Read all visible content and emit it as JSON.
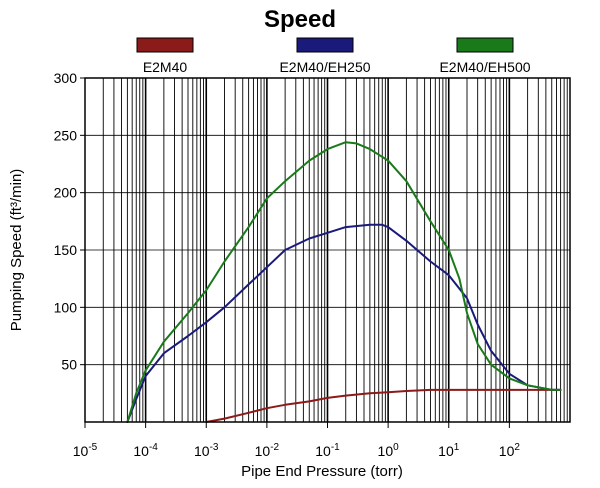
{
  "chart_data": {
    "type": "line",
    "title": "Speed",
    "xlabel": "Pipe End Pressure (torr)",
    "ylabel": "Pumping Speed (ft³/min)",
    "x_scale": "log",
    "xlim": [
      1e-05,
      1000
    ],
    "ylim": [
      0,
      300
    ],
    "grid": true,
    "legend_position": "top",
    "x_tick_labels": [
      {
        "base": "10",
        "exp": "-5",
        "value": 1e-05
      },
      {
        "base": "10",
        "exp": "-4",
        "value": 0.0001
      },
      {
        "base": "10",
        "exp": "-3",
        "value": 0.001
      },
      {
        "base": "10",
        "exp": "-2",
        "value": 0.01
      },
      {
        "base": "10",
        "exp": "-1",
        "value": 0.1
      },
      {
        "base": "10",
        "exp": "0",
        "value": 1
      },
      {
        "base": "10",
        "exp": "1",
        "value": 10
      },
      {
        "base": "10",
        "exp": "2",
        "value": 100
      }
    ],
    "y_tick_labels": [
      "50",
      "100",
      "150",
      "200",
      "250",
      "300"
    ],
    "y_ticks": [
      50,
      100,
      150,
      200,
      250,
      300
    ],
    "series": [
      {
        "name": "E2M40",
        "color": "#8b1a1a",
        "points": [
          [
            0.001,
            0
          ],
          [
            0.002,
            3
          ],
          [
            0.005,
            8
          ],
          [
            0.01,
            12
          ],
          [
            0.02,
            15
          ],
          [
            0.05,
            18
          ],
          [
            0.1,
            21
          ],
          [
            0.2,
            23
          ],
          [
            0.5,
            25
          ],
          [
            1,
            26
          ],
          [
            2,
            27
          ],
          [
            5,
            28
          ],
          [
            10,
            28
          ],
          [
            20,
            28
          ],
          [
            50,
            28
          ],
          [
            100,
            28
          ],
          [
            200,
            28
          ],
          [
            500,
            28
          ],
          [
            700,
            28
          ]
        ]
      },
      {
        "name": "E2M40/EH250",
        "color": "#1a1a7a",
        "points": [
          [
            5e-05,
            0
          ],
          [
            7e-05,
            20
          ],
          [
            0.0001,
            40
          ],
          [
            0.0002,
            60
          ],
          [
            0.0005,
            75
          ],
          [
            0.001,
            87
          ],
          [
            0.002,
            100
          ],
          [
            0.005,
            120
          ],
          [
            0.01,
            135
          ],
          [
            0.02,
            150
          ],
          [
            0.05,
            160
          ],
          [
            0.1,
            165
          ],
          [
            0.2,
            170
          ],
          [
            0.5,
            172
          ],
          [
            0.8,
            172
          ],
          [
            1,
            170
          ],
          [
            2,
            158
          ],
          [
            5,
            140
          ],
          [
            10,
            128
          ],
          [
            20,
            108
          ],
          [
            30,
            85
          ],
          [
            50,
            62
          ],
          [
            100,
            42
          ],
          [
            200,
            32
          ],
          [
            500,
            28
          ],
          [
            700,
            28
          ]
        ]
      },
      {
        "name": "E2M40/EH500",
        "color": "#1a7a1a",
        "points": [
          [
            5e-05,
            0
          ],
          [
            7e-05,
            25
          ],
          [
            0.0001,
            45
          ],
          [
            0.0002,
            70
          ],
          [
            0.0005,
            95
          ],
          [
            0.001,
            115
          ],
          [
            0.002,
            140
          ],
          [
            0.005,
            170
          ],
          [
            0.01,
            195
          ],
          [
            0.02,
            210
          ],
          [
            0.05,
            228
          ],
          [
            0.1,
            238
          ],
          [
            0.2,
            244
          ],
          [
            0.3,
            243
          ],
          [
            0.5,
            238
          ],
          [
            1,
            228
          ],
          [
            2,
            210
          ],
          [
            5,
            175
          ],
          [
            10,
            150
          ],
          [
            15,
            125
          ],
          [
            20,
            95
          ],
          [
            30,
            68
          ],
          [
            50,
            50
          ],
          [
            100,
            38
          ],
          [
            200,
            32
          ],
          [
            500,
            28
          ],
          [
            700,
            28
          ]
        ]
      }
    ]
  }
}
